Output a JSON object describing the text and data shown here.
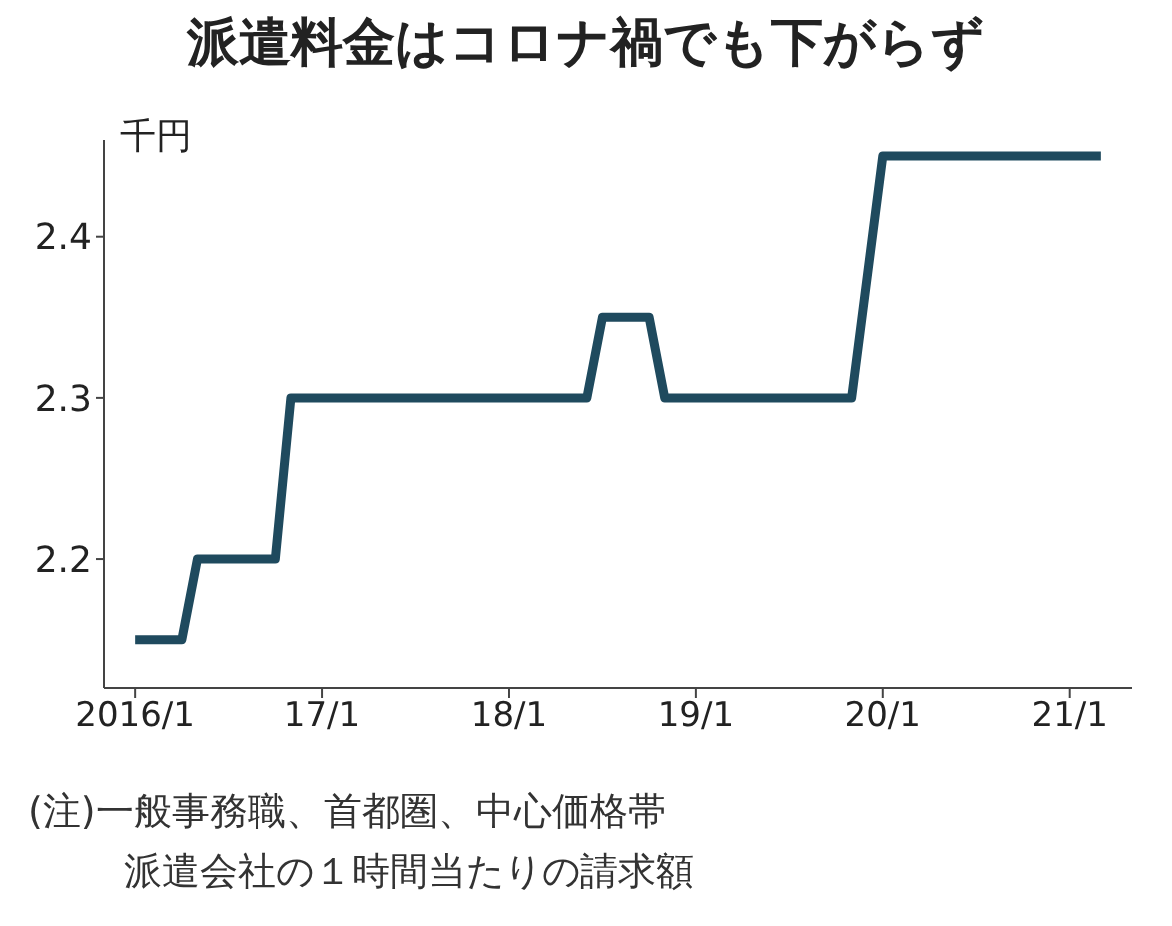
{
  "chart_data": {
    "type": "line",
    "title": "派遣料金はコロナ禍でも下がらず",
    "ylabel": "千円",
    "x": [
      "2016-01",
      "2016-04",
      "2016-05",
      "2016-10",
      "2016-11",
      "2018-06",
      "2018-07",
      "2018-10",
      "2018-11",
      "2019-11",
      "2020-01",
      "2021-03"
    ],
    "series": [
      {
        "color": "#1f4a5e",
        "values": [
          2.15,
          2.15,
          2.2,
          2.2,
          2.3,
          2.3,
          2.35,
          2.35,
          2.3,
          2.3,
          2.45,
          2.45
        ]
      }
    ],
    "xlim": [
      "2015-11",
      "2021-05"
    ],
    "xticks": [
      {
        "value": "2016-01",
        "label": "2016/1"
      },
      {
        "value": "2017-01",
        "label": "17/1"
      },
      {
        "value": "2018-01",
        "label": "18/1"
      },
      {
        "value": "2019-01",
        "label": "19/1"
      },
      {
        "value": "2020-01",
        "label": "20/1"
      },
      {
        "value": "2021-01",
        "label": "21/1"
      }
    ],
    "ylim": [
      2.12,
      2.46
    ],
    "yticks": [
      2.2,
      2.3,
      2.4
    ],
    "annotations": [
      "(注)一般事務職、首都圏、中心価格帯",
      "派遣会社の１時間当たりの請求額"
    ]
  }
}
